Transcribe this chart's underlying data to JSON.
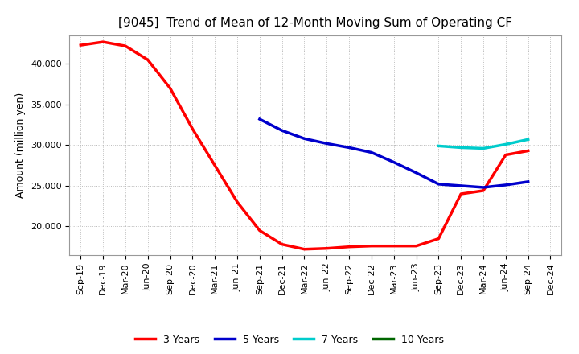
{
  "title": "[9045]  Trend of Mean of 12-Month Moving Sum of Operating CF",
  "ylabel": "Amount (million yen)",
  "background_color": "#ffffff",
  "grid_color": "#aaaaaa",
  "x_labels": [
    "Sep-19",
    "Dec-19",
    "Mar-20",
    "Jun-20",
    "Sep-20",
    "Dec-20",
    "Mar-21",
    "Jun-21",
    "Sep-21",
    "Dec-21",
    "Mar-22",
    "Jun-22",
    "Sep-22",
    "Dec-22",
    "Mar-23",
    "Jun-23",
    "Sep-23",
    "Dec-23",
    "Mar-24",
    "Jun-24",
    "Sep-24",
    "Dec-24"
  ],
  "series": [
    {
      "label": "3 Years",
      "color": "#ff0000",
      "linewidth": 2.5,
      "data_x": [
        0,
        1,
        2,
        3,
        4,
        5,
        6,
        7,
        8,
        9,
        10,
        11,
        12,
        13,
        14,
        15,
        16,
        17,
        18,
        19,
        20
      ],
      "data_y": [
        42300,
        42700,
        42200,
        40500,
        37000,
        32000,
        27500,
        23000,
        19500,
        17800,
        17200,
        17300,
        17500,
        17600,
        17600,
        17600,
        18500,
        24000,
        24400,
        28800,
        29300
      ]
    },
    {
      "label": "5 Years",
      "color": "#0000cc",
      "linewidth": 2.5,
      "data_x": [
        8,
        9,
        10,
        11,
        12,
        13,
        14,
        15,
        16,
        17,
        18,
        19,
        20
      ],
      "data_y": [
        33200,
        31800,
        30800,
        30200,
        29700,
        29100,
        27900,
        26600,
        25200,
        25000,
        24800,
        25100,
        25500
      ]
    },
    {
      "label": "7 Years",
      "color": "#00cccc",
      "linewidth": 2.5,
      "data_x": [
        16,
        17,
        18,
        19,
        20
      ],
      "data_y": [
        29900,
        29700,
        29600,
        30100,
        30700
      ]
    },
    {
      "label": "10 Years",
      "color": "#006600",
      "linewidth": 2.5,
      "data_x": [],
      "data_y": []
    }
  ],
  "ylim": [
    16500,
    43500
  ],
  "yticks": [
    20000,
    25000,
    30000,
    35000,
    40000
  ],
  "title_fontsize": 11,
  "label_fontsize": 9,
  "tick_fontsize": 8
}
